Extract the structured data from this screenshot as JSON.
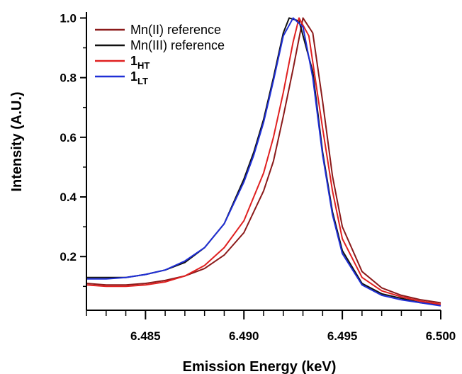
{
  "chart_data": {
    "type": "line",
    "title": "",
    "xlabel": "Emission Energy (keV)",
    "ylabel": "Intensity (A.U.)",
    "xlim": [
      6.482,
      6.5
    ],
    "ylim": [
      0.02,
      1.02
    ],
    "x_ticks": [
      6.485,
      6.49,
      6.495,
      6.5
    ],
    "x_tick_labels": [
      "6.485",
      "6.490",
      "6.495",
      "6.500"
    ],
    "y_ticks": [
      0.2,
      0.4,
      0.6,
      0.8,
      1.0
    ],
    "y_tick_labels": [
      "0.2",
      "0.4",
      "0.6",
      "0.8",
      "1.0"
    ],
    "grid": false,
    "legend_position": "top-left",
    "series": [
      {
        "name": "Mn(II) reference",
        "label_main": "Mn(II) reference",
        "label_sub": "",
        "color": "#8b1a1a",
        "points": [
          [
            6.482,
            0.11
          ],
          [
            6.483,
            0.105
          ],
          [
            6.484,
            0.105
          ],
          [
            6.485,
            0.11
          ],
          [
            6.486,
            0.12
          ],
          [
            6.487,
            0.135
          ],
          [
            6.488,
            0.16
          ],
          [
            6.489,
            0.205
          ],
          [
            6.49,
            0.28
          ],
          [
            6.491,
            0.42
          ],
          [
            6.4915,
            0.52
          ],
          [
            6.492,
            0.67
          ],
          [
            6.4925,
            0.83
          ],
          [
            6.493,
            1.0
          ],
          [
            6.4935,
            0.95
          ],
          [
            6.494,
            0.72
          ],
          [
            6.4945,
            0.47
          ],
          [
            6.495,
            0.3
          ],
          [
            6.496,
            0.15
          ],
          [
            6.497,
            0.095
          ],
          [
            6.498,
            0.07
          ],
          [
            6.499,
            0.055
          ],
          [
            6.5,
            0.045
          ]
        ]
      },
      {
        "name": "Mn(III) reference",
        "label_main": "Mn(III) reference",
        "label_sub": "",
        "color": "#111111",
        "points": [
          [
            6.482,
            0.13
          ],
          [
            6.483,
            0.13
          ],
          [
            6.484,
            0.13
          ],
          [
            6.485,
            0.14
          ],
          [
            6.486,
            0.155
          ],
          [
            6.487,
            0.18
          ],
          [
            6.488,
            0.23
          ],
          [
            6.489,
            0.31
          ],
          [
            6.49,
            0.46
          ],
          [
            6.4905,
            0.55
          ],
          [
            6.491,
            0.66
          ],
          [
            6.4915,
            0.8
          ],
          [
            6.492,
            0.95
          ],
          [
            6.4923,
            1.0
          ],
          [
            6.4928,
            0.99
          ],
          [
            6.4935,
            0.82
          ],
          [
            6.494,
            0.55
          ],
          [
            6.4945,
            0.35
          ],
          [
            6.495,
            0.22
          ],
          [
            6.496,
            0.11
          ],
          [
            6.497,
            0.075
          ],
          [
            6.498,
            0.06
          ],
          [
            6.499,
            0.045
          ],
          [
            6.5,
            0.04
          ]
        ]
      },
      {
        "name": "1HT",
        "label_main": "1",
        "label_sub": "HT",
        "color": "#e02020",
        "points": [
          [
            6.482,
            0.105
          ],
          [
            6.483,
            0.1
          ],
          [
            6.484,
            0.1
          ],
          [
            6.485,
            0.105
          ],
          [
            6.486,
            0.115
          ],
          [
            6.487,
            0.135
          ],
          [
            6.488,
            0.17
          ],
          [
            6.489,
            0.23
          ],
          [
            6.49,
            0.32
          ],
          [
            6.491,
            0.48
          ],
          [
            6.4915,
            0.6
          ],
          [
            6.492,
            0.75
          ],
          [
            6.4925,
            0.92
          ],
          [
            6.4928,
            1.0
          ],
          [
            6.4933,
            0.94
          ],
          [
            6.494,
            0.63
          ],
          [
            6.4945,
            0.42
          ],
          [
            6.495,
            0.26
          ],
          [
            6.496,
            0.13
          ],
          [
            6.497,
            0.085
          ],
          [
            6.498,
            0.065
          ],
          [
            6.499,
            0.05
          ],
          [
            6.5,
            0.04
          ]
        ]
      },
      {
        "name": "1LT",
        "label_main": "1",
        "label_sub": "LT",
        "color": "#1f2fd6",
        "points": [
          [
            6.482,
            0.125
          ],
          [
            6.483,
            0.125
          ],
          [
            6.484,
            0.13
          ],
          [
            6.485,
            0.14
          ],
          [
            6.486,
            0.155
          ],
          [
            6.487,
            0.185
          ],
          [
            6.488,
            0.23
          ],
          [
            6.489,
            0.31
          ],
          [
            6.49,
            0.45
          ],
          [
            6.4905,
            0.54
          ],
          [
            6.491,
            0.65
          ],
          [
            6.4915,
            0.79
          ],
          [
            6.492,
            0.94
          ],
          [
            6.4925,
            1.0
          ],
          [
            6.493,
            0.97
          ],
          [
            6.4935,
            0.8
          ],
          [
            6.494,
            0.54
          ],
          [
            6.4945,
            0.34
          ],
          [
            6.495,
            0.21
          ],
          [
            6.496,
            0.105
          ],
          [
            6.497,
            0.07
          ],
          [
            6.498,
            0.055
          ],
          [
            6.499,
            0.045
          ],
          [
            6.5,
            0.035
          ]
        ]
      }
    ]
  }
}
